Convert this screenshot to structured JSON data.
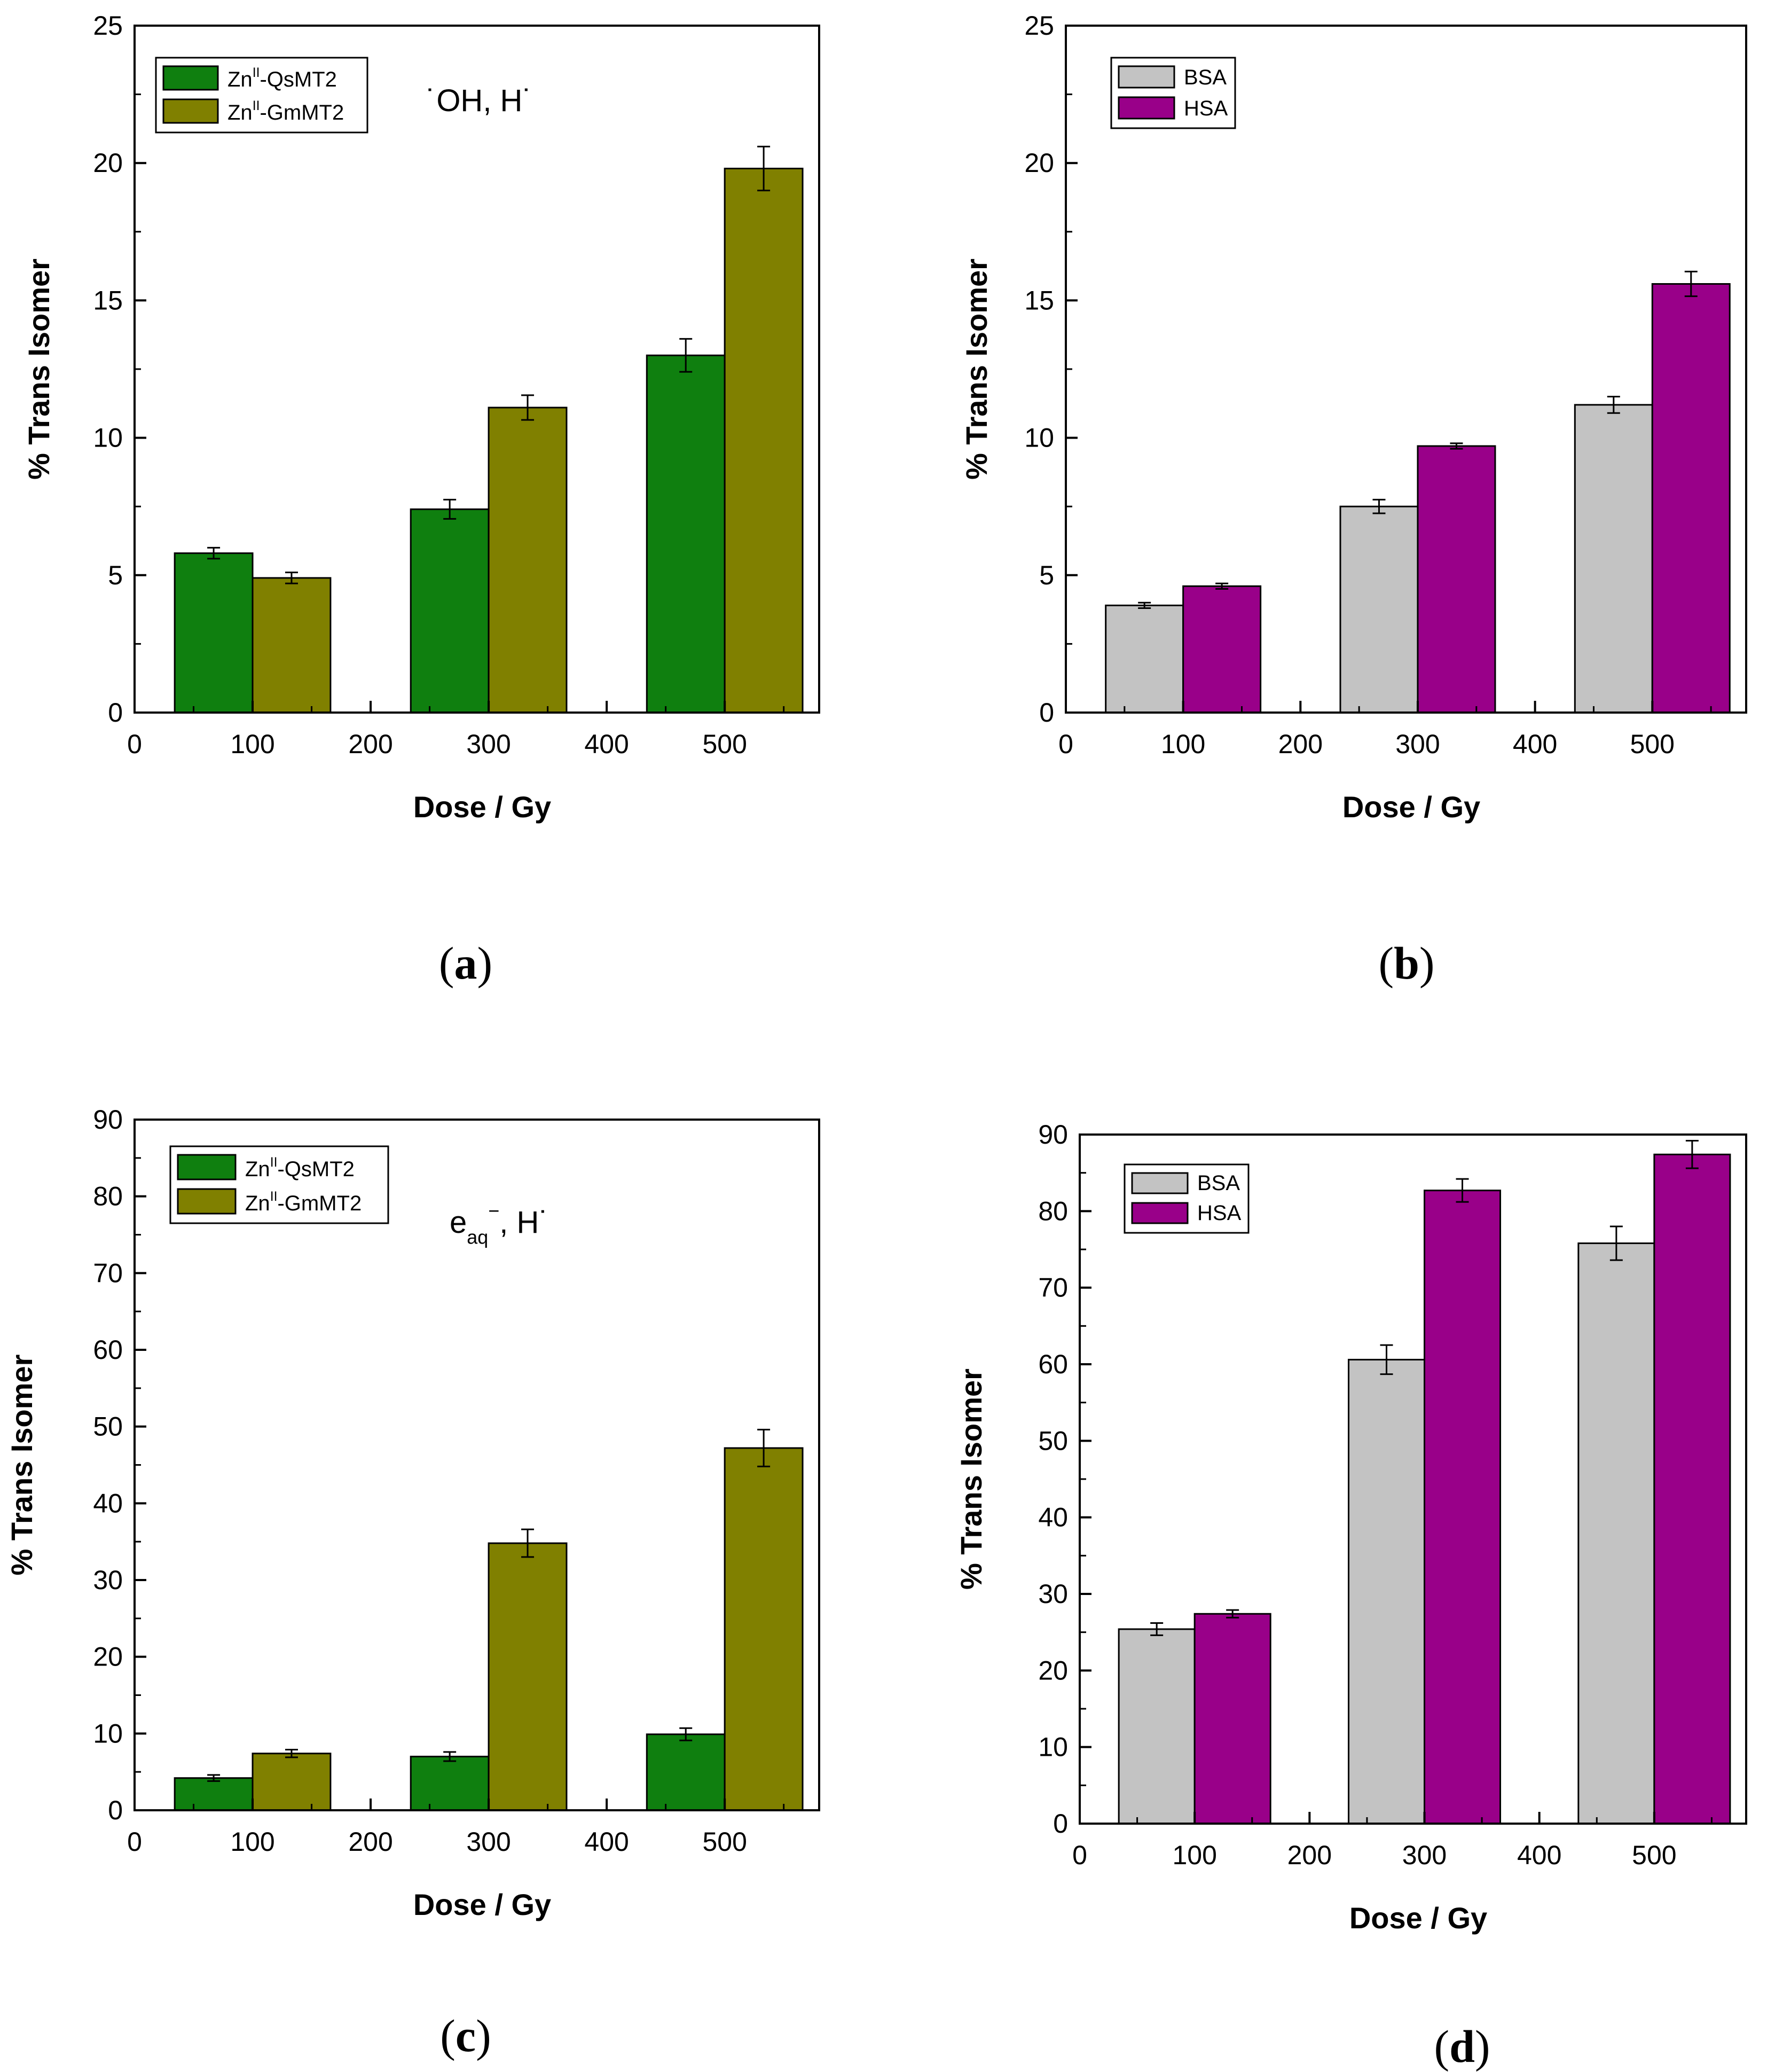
{
  "colors": {
    "qs": "#0f7f0f",
    "gm": "#808000",
    "bsa": "#c3c3c3",
    "hsa": "#990089",
    "axis": "#000000"
  },
  "chart_data": [
    {
      "panel": "(a)",
      "type": "bar",
      "xlabel": "Dose / Gy",
      "ylabel": "% Trans Isomer",
      "xlim": [
        0,
        580
      ],
      "ylim": [
        0,
        25
      ],
      "xticks": [
        0,
        100,
        200,
        300,
        400,
        500
      ],
      "yticks": [
        0,
        5,
        10,
        15,
        20,
        25
      ],
      "categories": [
        100,
        300,
        500
      ],
      "legend_position": "top-left",
      "annotation": {
        "base": "˙OH, H˙"
      },
      "series": [
        {
          "name_base": "Zn",
          "name_sup": "II",
          "name_rest": "-QsMT2",
          "color_key": "qs",
          "values": [
            5.8,
            7.4,
            13.0
          ],
          "errors": [
            0.2,
            0.35,
            0.6
          ]
        },
        {
          "name_base": "Zn",
          "name_sup": "II",
          "name_rest": "-GmMT2",
          "color_key": "gm",
          "values": [
            4.9,
            11.1,
            19.8
          ],
          "errors": [
            0.2,
            0.45,
            0.8
          ]
        }
      ]
    },
    {
      "panel": "(b)",
      "type": "bar",
      "xlabel": "Dose / Gy",
      "ylabel": "% Trans Isomer",
      "xlim": [
        0,
        580
      ],
      "ylim": [
        0,
        25
      ],
      "xticks": [
        0,
        100,
        200,
        300,
        400,
        500
      ],
      "yticks": [
        0,
        5,
        10,
        15,
        20,
        25
      ],
      "categories": [
        100,
        300,
        500
      ],
      "legend_position": "top-left",
      "annotation": null,
      "series": [
        {
          "name_base": "BSA",
          "name_sup": "",
          "name_rest": "",
          "color_key": "bsa",
          "values": [
            3.9,
            7.5,
            11.2
          ],
          "errors": [
            0.1,
            0.25,
            0.3
          ]
        },
        {
          "name_base": "HSA",
          "name_sup": "",
          "name_rest": "",
          "color_key": "hsa",
          "values": [
            4.6,
            9.7,
            15.6
          ],
          "errors": [
            0.1,
            0.1,
            0.45
          ]
        }
      ]
    },
    {
      "panel": "(c)",
      "type": "bar",
      "xlabel": "Dose / Gy",
      "ylabel": "% Trans Isomer",
      "xlim": [
        0,
        580
      ],
      "ylim": [
        0,
        90
      ],
      "xticks": [
        0,
        100,
        200,
        300,
        400,
        500
      ],
      "yticks": [
        0,
        10,
        20,
        30,
        40,
        50,
        60,
        70,
        80,
        90
      ],
      "categories": [
        100,
        300,
        500
      ],
      "legend_position": "top-left",
      "annotation": {
        "base": "e",
        "sub": "aq",
        "sup": "−",
        "rest": ", H˙"
      },
      "series": [
        {
          "name_base": "Zn",
          "name_sup": "II",
          "name_rest": "-QsMT2",
          "color_key": "qs",
          "values": [
            4.2,
            7.0,
            9.9
          ],
          "errors": [
            0.4,
            0.6,
            0.8
          ]
        },
        {
          "name_base": "Zn",
          "name_sup": "II",
          "name_rest": "-GmMT2",
          "color_key": "gm",
          "values": [
            7.4,
            34.8,
            47.2
          ],
          "errors": [
            0.5,
            1.8,
            2.4
          ]
        }
      ]
    },
    {
      "panel": "(d)",
      "type": "bar",
      "xlabel": "Dose / Gy",
      "ylabel": "% Trans Isomer",
      "xlim": [
        0,
        580
      ],
      "ylim": [
        0,
        90
      ],
      "xticks": [
        0,
        100,
        200,
        300,
        400,
        500
      ],
      "yticks": [
        0,
        10,
        20,
        30,
        40,
        50,
        60,
        70,
        80,
        90
      ],
      "categories": [
        100,
        300,
        500
      ],
      "legend_position": "top-left",
      "annotation": null,
      "series": [
        {
          "name_base": "BSA",
          "name_sup": "",
          "name_rest": "",
          "color_key": "bsa",
          "values": [
            25.4,
            60.6,
            75.8
          ],
          "errors": [
            0.8,
            1.9,
            2.2
          ]
        },
        {
          "name_base": "HSA",
          "name_sup": "",
          "name_rest": "",
          "color_key": "hsa",
          "values": [
            27.4,
            82.7,
            87.4
          ],
          "errors": [
            0.5,
            1.5,
            1.8
          ]
        }
      ]
    }
  ]
}
